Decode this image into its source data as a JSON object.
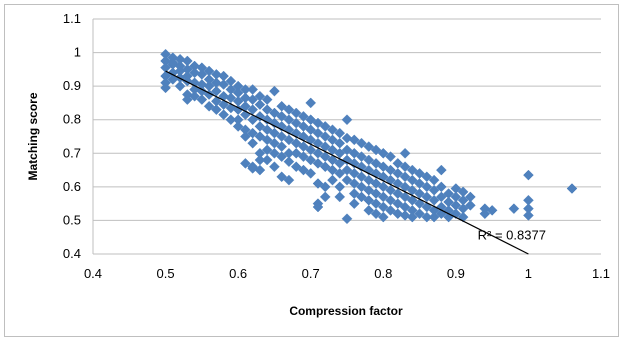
{
  "chart_data": {
    "type": "scatter",
    "title": "",
    "xlabel": "Compression factor",
    "ylabel": "Matching score",
    "xlim": [
      0.4,
      1.1
    ],
    "ylim": [
      0.4,
      1.1
    ],
    "xticks": [
      "0.4",
      "0.5",
      "0.6",
      "0.7",
      "0.8",
      "0.9",
      "1",
      "1.1"
    ],
    "yticks": [
      "0.4",
      "0.5",
      "0.6",
      "0.7",
      "0.8",
      "0.9",
      "1",
      "1.1"
    ],
    "grid": "horizontal",
    "legend": "none",
    "marker_color": "#4F81BD",
    "trendline": {
      "type": "linear",
      "color": "#000000",
      "x": [
        0.5,
        1.0
      ],
      "y": [
        0.945,
        0.4
      ],
      "r_squared_label": "R² = 0.8377"
    },
    "series": [
      {
        "points": [
          [
            0.5,
            0.995
          ],
          [
            0.5,
            0.975
          ],
          [
            0.5,
            0.955
          ],
          [
            0.5,
            0.93
          ],
          [
            0.5,
            0.91
          ],
          [
            0.5,
            0.895
          ],
          [
            0.51,
            0.985
          ],
          [
            0.51,
            0.965
          ],
          [
            0.51,
            0.94
          ],
          [
            0.51,
            0.92
          ],
          [
            0.51,
            0.97
          ],
          [
            0.52,
            0.98
          ],
          [
            0.52,
            0.96
          ],
          [
            0.52,
            0.945
          ],
          [
            0.52,
            0.925
          ],
          [
            0.52,
            0.9
          ],
          [
            0.53,
            0.975
          ],
          [
            0.53,
            0.95
          ],
          [
            0.53,
            0.93
          ],
          [
            0.53,
            0.915
          ],
          [
            0.53,
            0.875
          ],
          [
            0.53,
            0.86
          ],
          [
            0.54,
            0.96
          ],
          [
            0.54,
            0.94
          ],
          [
            0.54,
            0.91
          ],
          [
            0.54,
            0.89
          ],
          [
            0.54,
            0.87
          ],
          [
            0.55,
            0.955
          ],
          [
            0.55,
            0.935
          ],
          [
            0.55,
            0.905
          ],
          [
            0.55,
            0.885
          ],
          [
            0.55,
            0.86
          ],
          [
            0.56,
            0.945
          ],
          [
            0.56,
            0.92
          ],
          [
            0.56,
            0.9
          ],
          [
            0.56,
            0.875
          ],
          [
            0.56,
            0.84
          ],
          [
            0.57,
            0.935
          ],
          [
            0.57,
            0.91
          ],
          [
            0.57,
            0.885
          ],
          [
            0.57,
            0.855
          ],
          [
            0.57,
            0.83
          ],
          [
            0.58,
            0.93
          ],
          [
            0.58,
            0.905
          ],
          [
            0.58,
            0.87
          ],
          [
            0.58,
            0.845
          ],
          [
            0.58,
            0.815
          ],
          [
            0.59,
            0.915
          ],
          [
            0.59,
            0.89
          ],
          [
            0.59,
            0.865
          ],
          [
            0.59,
            0.835
          ],
          [
            0.59,
            0.8
          ],
          [
            0.6,
            0.9
          ],
          [
            0.6,
            0.88
          ],
          [
            0.6,
            0.855
          ],
          [
            0.6,
            0.83
          ],
          [
            0.6,
            0.8
          ],
          [
            0.6,
            0.78
          ],
          [
            0.61,
            0.89
          ],
          [
            0.61,
            0.865
          ],
          [
            0.61,
            0.84
          ],
          [
            0.61,
            0.815
          ],
          [
            0.61,
            0.77
          ],
          [
            0.61,
            0.75
          ],
          [
            0.61,
            0.67
          ],
          [
            0.62,
            0.89
          ],
          [
            0.62,
            0.86
          ],
          [
            0.62,
            0.83
          ],
          [
            0.62,
            0.8
          ],
          [
            0.62,
            0.76
          ],
          [
            0.62,
            0.73
          ],
          [
            0.62,
            0.66
          ],
          [
            0.62,
            0.655
          ],
          [
            0.63,
            0.87
          ],
          [
            0.63,
            0.845
          ],
          [
            0.63,
            0.81
          ],
          [
            0.63,
            0.78
          ],
          [
            0.63,
            0.75
          ],
          [
            0.63,
            0.7
          ],
          [
            0.63,
            0.68
          ],
          [
            0.63,
            0.65
          ],
          [
            0.64,
            0.86
          ],
          [
            0.64,
            0.83
          ],
          [
            0.64,
            0.8
          ],
          [
            0.64,
            0.77
          ],
          [
            0.64,
            0.74
          ],
          [
            0.64,
            0.71
          ],
          [
            0.64,
            0.68
          ],
          [
            0.65,
            0.885
          ],
          [
            0.65,
            0.82
          ],
          [
            0.65,
            0.79
          ],
          [
            0.65,
            0.76
          ],
          [
            0.65,
            0.73
          ],
          [
            0.65,
            0.7
          ],
          [
            0.65,
            0.66
          ],
          [
            0.66,
            0.84
          ],
          [
            0.66,
            0.81
          ],
          [
            0.66,
            0.78
          ],
          [
            0.66,
            0.75
          ],
          [
            0.66,
            0.72
          ],
          [
            0.66,
            0.69
          ],
          [
            0.66,
            0.63
          ],
          [
            0.67,
            0.83
          ],
          [
            0.67,
            0.8
          ],
          [
            0.67,
            0.77
          ],
          [
            0.67,
            0.74
          ],
          [
            0.67,
            0.7
          ],
          [
            0.67,
            0.675
          ],
          [
            0.67,
            0.62
          ],
          [
            0.68,
            0.82
          ],
          [
            0.68,
            0.79
          ],
          [
            0.68,
            0.76
          ],
          [
            0.68,
            0.73
          ],
          [
            0.68,
            0.7
          ],
          [
            0.68,
            0.66
          ],
          [
            0.69,
            0.81
          ],
          [
            0.69,
            0.78
          ],
          [
            0.69,
            0.75
          ],
          [
            0.69,
            0.72
          ],
          [
            0.69,
            0.69
          ],
          [
            0.69,
            0.65
          ],
          [
            0.7,
            0.85
          ],
          [
            0.7,
            0.8
          ],
          [
            0.7,
            0.77
          ],
          [
            0.7,
            0.74
          ],
          [
            0.7,
            0.71
          ],
          [
            0.7,
            0.68
          ],
          [
            0.7,
            0.64
          ],
          [
            0.71,
            0.79
          ],
          [
            0.71,
            0.76
          ],
          [
            0.71,
            0.73
          ],
          [
            0.71,
            0.7
          ],
          [
            0.71,
            0.67
          ],
          [
            0.71,
            0.61
          ],
          [
            0.71,
            0.55
          ],
          [
            0.71,
            0.54
          ],
          [
            0.72,
            0.78
          ],
          [
            0.72,
            0.75
          ],
          [
            0.72,
            0.72
          ],
          [
            0.72,
            0.69
          ],
          [
            0.72,
            0.66
          ],
          [
            0.72,
            0.6
          ],
          [
            0.72,
            0.57
          ],
          [
            0.73,
            0.77
          ],
          [
            0.73,
            0.74
          ],
          [
            0.73,
            0.71
          ],
          [
            0.73,
            0.68
          ],
          [
            0.73,
            0.65
          ],
          [
            0.73,
            0.62
          ],
          [
            0.74,
            0.76
          ],
          [
            0.74,
            0.73
          ],
          [
            0.74,
            0.7
          ],
          [
            0.74,
            0.67
          ],
          [
            0.74,
            0.64
          ],
          [
            0.74,
            0.6
          ],
          [
            0.74,
            0.57
          ],
          [
            0.75,
            0.8
          ],
          [
            0.75,
            0.745
          ],
          [
            0.75,
            0.71
          ],
          [
            0.75,
            0.68
          ],
          [
            0.75,
            0.65
          ],
          [
            0.75,
            0.62
          ],
          [
            0.75,
            0.505
          ],
          [
            0.76,
            0.74
          ],
          [
            0.76,
            0.7
          ],
          [
            0.76,
            0.67
          ],
          [
            0.76,
            0.64
          ],
          [
            0.76,
            0.61
          ],
          [
            0.76,
            0.58
          ],
          [
            0.76,
            0.55
          ],
          [
            0.77,
            0.73
          ],
          [
            0.77,
            0.69
          ],
          [
            0.77,
            0.66
          ],
          [
            0.77,
            0.63
          ],
          [
            0.77,
            0.6
          ],
          [
            0.77,
            0.57
          ],
          [
            0.78,
            0.72
          ],
          [
            0.78,
            0.68
          ],
          [
            0.78,
            0.65
          ],
          [
            0.78,
            0.62
          ],
          [
            0.78,
            0.59
          ],
          [
            0.78,
            0.56
          ],
          [
            0.78,
            0.53
          ],
          [
            0.79,
            0.71
          ],
          [
            0.79,
            0.67
          ],
          [
            0.79,
            0.64
          ],
          [
            0.79,
            0.61
          ],
          [
            0.79,
            0.58
          ],
          [
            0.79,
            0.55
          ],
          [
            0.79,
            0.52
          ],
          [
            0.8,
            0.7
          ],
          [
            0.8,
            0.66
          ],
          [
            0.8,
            0.63
          ],
          [
            0.8,
            0.6
          ],
          [
            0.8,
            0.57
          ],
          [
            0.8,
            0.54
          ],
          [
            0.8,
            0.51
          ],
          [
            0.81,
            0.69
          ],
          [
            0.81,
            0.65
          ],
          [
            0.81,
            0.62
          ],
          [
            0.81,
            0.59
          ],
          [
            0.81,
            0.56
          ],
          [
            0.81,
            0.53
          ],
          [
            0.82,
            0.67
          ],
          [
            0.82,
            0.64
          ],
          [
            0.82,
            0.61
          ],
          [
            0.82,
            0.58
          ],
          [
            0.82,
            0.55
          ],
          [
            0.82,
            0.52
          ],
          [
            0.83,
            0.7
          ],
          [
            0.83,
            0.66
          ],
          [
            0.83,
            0.63
          ],
          [
            0.83,
            0.6
          ],
          [
            0.83,
            0.57
          ],
          [
            0.83,
            0.54
          ],
          [
            0.83,
            0.515
          ],
          [
            0.84,
            0.65
          ],
          [
            0.84,
            0.62
          ],
          [
            0.84,
            0.59
          ],
          [
            0.84,
            0.56
          ],
          [
            0.84,
            0.53
          ],
          [
            0.84,
            0.51
          ],
          [
            0.85,
            0.64
          ],
          [
            0.85,
            0.61
          ],
          [
            0.85,
            0.58
          ],
          [
            0.85,
            0.55
          ],
          [
            0.85,
            0.52
          ],
          [
            0.86,
            0.63
          ],
          [
            0.86,
            0.6
          ],
          [
            0.86,
            0.57
          ],
          [
            0.86,
            0.54
          ],
          [
            0.86,
            0.51
          ],
          [
            0.87,
            0.62
          ],
          [
            0.87,
            0.59
          ],
          [
            0.87,
            0.56
          ],
          [
            0.87,
            0.53
          ],
          [
            0.87,
            0.51
          ],
          [
            0.88,
            0.65
          ],
          [
            0.88,
            0.6
          ],
          [
            0.88,
            0.57
          ],
          [
            0.88,
            0.54
          ],
          [
            0.88,
            0.52
          ],
          [
            0.89,
            0.58
          ],
          [
            0.89,
            0.555
          ],
          [
            0.89,
            0.53
          ],
          [
            0.89,
            0.51
          ],
          [
            0.9,
            0.595
          ],
          [
            0.9,
            0.57
          ],
          [
            0.9,
            0.545
          ],
          [
            0.9,
            0.52
          ],
          [
            0.91,
            0.585
          ],
          [
            0.91,
            0.56
          ],
          [
            0.91,
            0.535
          ],
          [
            0.91,
            0.51
          ],
          [
            0.92,
            0.57
          ],
          [
            0.92,
            0.545
          ],
          [
            0.94,
            0.535
          ],
          [
            0.94,
            0.52
          ],
          [
            0.95,
            0.53
          ],
          [
            0.98,
            0.535
          ],
          [
            1.0,
            0.635
          ],
          [
            1.0,
            0.56
          ],
          [
            1.0,
            0.535
          ],
          [
            1.0,
            0.515
          ],
          [
            1.06,
            0.595
          ]
        ]
      }
    ]
  }
}
